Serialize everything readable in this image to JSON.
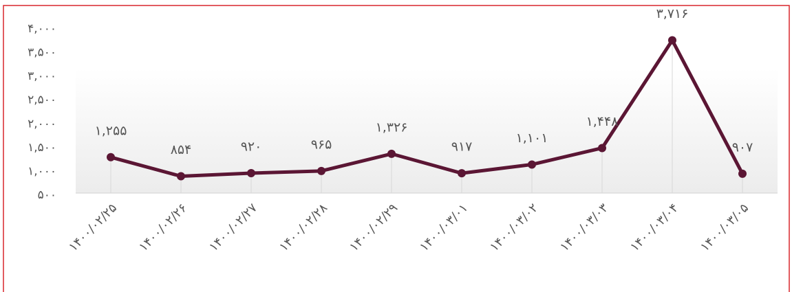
{
  "chart_data": {
    "type": "line",
    "categories": [
      "۱۴۰۰/۰۲/۲۵",
      "۱۴۰۰/۰۲/۲۶",
      "۱۴۰۰/۰۲/۲۷",
      "۱۴۰۰/۰۲/۲۸",
      "۱۴۰۰/۰۲/۲۹",
      "۱۴۰۰/۰۳/۰۱",
      "۱۴۰۰/۰۳/۰۲",
      "۱۴۰۰/۰۳/۰۳",
      "۱۴۰۰/۰۳/۰۴",
      "۱۴۰۰/۰۳/۰۵"
    ],
    "values": [
      1255,
      854,
      920,
      965,
      1326,
      917,
      1101,
      1448,
      3716,
      907
    ],
    "value_labels": [
      "۱,۲۵۵",
      "۸۵۴",
      "۹۲۰",
      "۹۶۵",
      "۱,۳۲۶",
      "۹۱۷",
      "۱,۱۰۱",
      "۱,۴۴۸",
      "۳,۷۱۶",
      "۹۰۷"
    ],
    "color": "#5b1634",
    "ylim": [
      500,
      4000
    ],
    "yticks": [
      {
        "value": 500,
        "label": "۵۰۰"
      },
      {
        "value": 1000,
        "label": "۱,۰۰۰"
      },
      {
        "value": 1500,
        "label": "۱,۵۰۰"
      },
      {
        "value": 2000,
        "label": "۲,۰۰۰"
      },
      {
        "value": 2500,
        "label": "۲,۵۰۰"
      },
      {
        "value": 3000,
        "label": "۳,۰۰۰"
      },
      {
        "value": 3500,
        "label": "۳,۵۰۰"
      },
      {
        "value": 4000,
        "label": "۴,۰۰۰"
      }
    ]
  }
}
